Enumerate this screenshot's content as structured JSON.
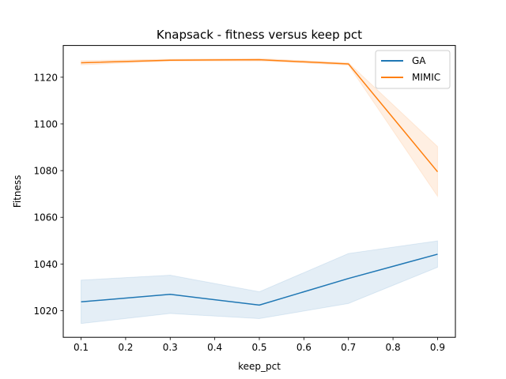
{
  "chart_data": {
    "type": "line",
    "title": "Knapsack - fitness versus keep pct",
    "xlabel": "keep_pct",
    "ylabel": "Fitness",
    "x": [
      0.1,
      0.3,
      0.5,
      0.7,
      0.9
    ],
    "x_ticks": [
      0.1,
      0.2,
      0.3,
      0.4,
      0.5,
      0.6,
      0.7,
      0.8,
      0.9
    ],
    "x_tick_labels": [
      "0.1",
      "0.2",
      "0.3",
      "0.4",
      "0.5",
      "0.6",
      "0.7",
      "0.8",
      "0.9"
    ],
    "y_ticks": [
      1020,
      1040,
      1060,
      1080,
      1100,
      1120
    ],
    "y_tick_labels": [
      "1020",
      "1040",
      "1060",
      "1080",
      "1100",
      "1120"
    ],
    "xlim": [
      0.06,
      0.94
    ],
    "ylim": [
      1008.6,
      1133.6
    ],
    "grid": false,
    "legend_position": "top-right",
    "series": [
      {
        "name": "GA",
        "color": "#1f77b4",
        "values": [
          1023.8,
          1027.0,
          1022.4,
          1033.8,
          1044.2
        ],
        "ci_low": [
          1014.5,
          1018.8,
          1016.6,
          1023.1,
          1038.6
        ],
        "ci_high": [
          1033.1,
          1035.2,
          1028.1,
          1044.5,
          1049.9
        ]
      },
      {
        "name": "MIMIC",
        "color": "#ff7f0e",
        "values": [
          1126.2,
          1127.3,
          1127.5,
          1125.7,
          1079.5
        ],
        "ci_low": [
          1125.3,
          1126.9,
          1127.0,
          1125.2,
          1069.0
        ],
        "ci_high": [
          1127.1,
          1127.7,
          1128.0,
          1126.2,
          1090.3
        ]
      }
    ]
  }
}
